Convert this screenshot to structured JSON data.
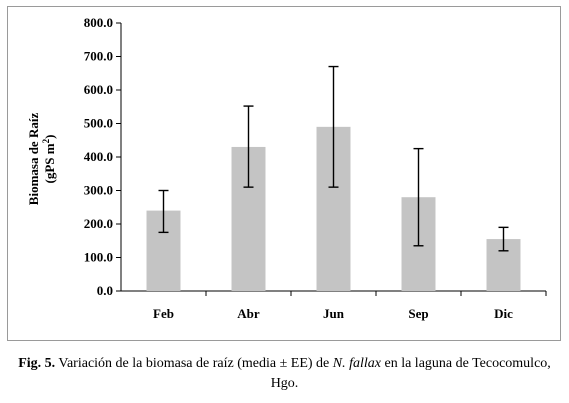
{
  "chart_data": {
    "type": "bar",
    "categories": [
      "Feb",
      "Abr",
      "Jun",
      "Sep",
      "Dic"
    ],
    "values": [
      240,
      430,
      490,
      280,
      155
    ],
    "error_low": [
      175,
      310,
      310,
      135,
      120
    ],
    "error_high": [
      300,
      552,
      670,
      425,
      190
    ],
    "ylabel_line1": "Biomasa de Raíz",
    "ylabel_line2": "(gPS m",
    "ylabel_sup": "2",
    "ylabel_close": ")",
    "ylim": [
      0,
      800
    ],
    "yticks": [
      0,
      100,
      200,
      300,
      400,
      500,
      600,
      700,
      800
    ],
    "ytick_labels": [
      "0.0",
      "100.0",
      "200.0",
      "300.0",
      "400.0",
      "500.0",
      "600.0",
      "700.0",
      "800.0"
    ],
    "bar_color": "#c4c4c4",
    "grid": false,
    "legend": "none"
  },
  "caption": {
    "label": "Fig. 5.",
    "text_before": " Variación de la biomasa de raíz (media ± EE) de ",
    "species": "N. fallax",
    "text_after": " en la laguna de Tecocomulco, Hgo."
  }
}
